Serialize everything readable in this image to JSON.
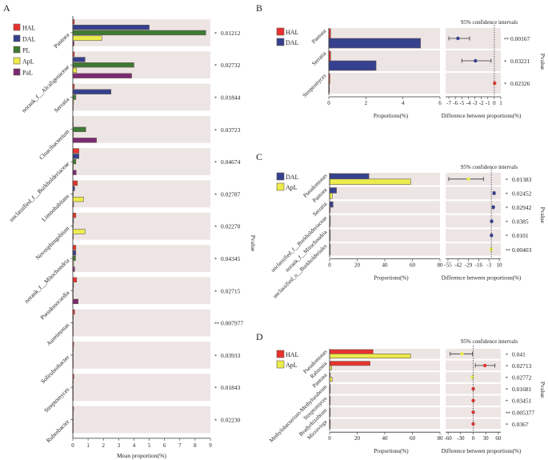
{
  "colors": {
    "HAL": "#e8322e",
    "DAL": "#35418f",
    "PL": "#3d7a34",
    "ApL": "#ecec4c",
    "PaL": "#7b2a73",
    "panel_bg": "#ede5e4",
    "star": "#f07a78",
    "axis": "#333333"
  },
  "chart_data": [
    {
      "panel": "A",
      "type": "bar",
      "orientation": "horizontal",
      "xlabel": "Mean proportion(%)",
      "right_label": "Pvalue",
      "xlim": [
        0,
        9
      ],
      "xticks": [
        "0",
        "1",
        "2",
        "3",
        "4",
        "5",
        "6",
        "7",
        "8",
        "9"
      ],
      "legend": [
        "HAL",
        "DAL",
        "PL",
        "ApL",
        "PaL"
      ],
      "legend_placement": "top-left",
      "categories": [
        "Pantoea",
        "norank_f__Alcaligenaceae",
        "Serratia",
        "Cloacibacterium",
        "unclassified_f__Burkholderiaceae",
        "Limnohabitans",
        "Novosphingobium",
        "norank_f__Mitochondria",
        "Pseudonocardia",
        "Aureimonas",
        "Solirubrobacter",
        "Streptomyces",
        "Rubrobacter"
      ],
      "series": [
        {
          "name": "HAL",
          "values": [
            0.1,
            0.1,
            0.1,
            0.02,
            0.4,
            0.3,
            0.2,
            0.2,
            0.25,
            0.12,
            0.06,
            0.07,
            0.05
          ]
        },
        {
          "name": "DAL",
          "values": [
            5.0,
            0.8,
            2.5,
            0.02,
            0.4,
            0.12,
            0.05,
            0.2,
            0.05,
            0.02,
            0.02,
            0.02,
            0.02
          ]
        },
        {
          "name": "PL",
          "values": [
            8.7,
            4.0,
            0.2,
            0.85,
            0.2,
            0.02,
            0.02,
            0.18,
            0.02,
            0.02,
            0.02,
            0.02,
            0.02
          ]
        },
        {
          "name": "ApL",
          "values": [
            1.9,
            0.25,
            0.05,
            0.02,
            0.02,
            0.7,
            0.8,
            0.05,
            0.02,
            0.02,
            0.02,
            0.02,
            0.02
          ]
        },
        {
          "name": "PaL",
          "values": [
            0.08,
            3.85,
            0.02,
            1.55,
            0.22,
            0.05,
            0.02,
            0.12,
            0.35,
            0.02,
            0.02,
            0.02,
            0.02
          ]
        }
      ],
      "pvalues": [
        "0.01212",
        "0.02732",
        "0.01844",
        "0.03723",
        "0.04674",
        "0.02787",
        "0.02270",
        "0.04345",
        "0.02715",
        "0.007977",
        "0.03933",
        "0.01843",
        "0.02230"
      ],
      "stars": [
        "*",
        "*",
        "*",
        "*",
        "*",
        "*",
        "*",
        "*",
        "*",
        "**",
        "*",
        "*",
        "*"
      ]
    },
    {
      "panel": "B",
      "type": "bar",
      "orientation": "horizontal",
      "xlabel": "Proportions(%)",
      "ci_title": "95% confidence intervals",
      "ci_xlabel": "Difference between proportions(%)",
      "right_label": "Pvalue",
      "xlim": [
        0,
        6
      ],
      "xticks": [
        "0",
        "2",
        "4",
        "6"
      ],
      "ci_xlim": [
        -7.5,
        1
      ],
      "ci_xticks": [
        "-7",
        "-6",
        "-5",
        "-4",
        "-3",
        "-2",
        "-1",
        "0",
        "1"
      ],
      "legend": [
        "HAL",
        "DAL"
      ],
      "categories": [
        "Pantoea",
        "Serratia",
        "Streptomyces"
      ],
      "series": [
        {
          "name": "HAL",
          "values": [
            0.1,
            0.1,
            0.06
          ]
        },
        {
          "name": "DAL",
          "values": [
            4.95,
            2.55,
            0.02
          ]
        }
      ],
      "ci": [
        {
          "estimate": -5.6,
          "low": -7.0,
          "high": -3.8,
          "color_group": "DAL"
        },
        {
          "estimate": -2.9,
          "low": -5.0,
          "high": -0.5,
          "color_group": "DAL"
        },
        {
          "estimate": 0.05,
          "low": 0.05,
          "high": 0.05,
          "color_group": "HAL"
        }
      ],
      "pvalues": [
        "0.00167",
        "0.03221",
        "0.02326"
      ],
      "stars": [
        "**",
        "*",
        "*"
      ]
    },
    {
      "panel": "C",
      "type": "bar",
      "orientation": "horizontal",
      "xlabel": "Proportions(%)",
      "ci_title": "95% confidence intervals",
      "ci_xlabel": "Difference between proportions(%)",
      "right_label": "Pvalue",
      "xlim": [
        0,
        80
      ],
      "xticks": [
        "0",
        "20",
        "40",
        "60",
        "80"
      ],
      "ci_xlim": [
        -58,
        12
      ],
      "ci_xticks": [
        "-55",
        "-42",
        "-29",
        "-16",
        "-3",
        "10"
      ],
      "legend": [
        "DAL",
        "ApL"
      ],
      "categories": [
        "Pseudomonas",
        "Pantoea",
        "Serratia",
        "unclassified_f__Burkholderiaceae",
        "norank_f__Mitochondria",
        "unclassified_o__Burkholderiales"
      ],
      "series": [
        {
          "name": "DAL",
          "values": [
            28.5,
            5.0,
            2.5,
            0.5,
            0.2,
            0.1
          ]
        },
        {
          "name": "ApL",
          "values": [
            58.7,
            1.9,
            0.05,
            0.02,
            0.05,
            0.3
          ]
        }
      ],
      "ci": [
        {
          "estimate": -29,
          "low": -54,
          "high": -10,
          "color_group": "ApL"
        },
        {
          "estimate": 3.5,
          "low": 2.5,
          "high": 4.5,
          "color_group": "DAL"
        },
        {
          "estimate": 2.5,
          "low": 1.5,
          "high": 3.5,
          "color_group": "DAL"
        },
        {
          "estimate": 0.4,
          "low": 0.2,
          "high": 0.6,
          "color_group": "DAL"
        },
        {
          "estimate": 0.2,
          "low": 0.1,
          "high": 0.3,
          "color_group": "DAL"
        },
        {
          "estimate": -0.3,
          "low": -0.4,
          "high": -0.2,
          "color_group": "ApL"
        }
      ],
      "pvalues": [
        "0.01383",
        "0.02452",
        "0.02942",
        "0.0385",
        "0.0101",
        "0.00403"
      ],
      "stars": [
        "*",
        "*",
        "*",
        "*",
        "*",
        "**"
      ]
    },
    {
      "panel": "D",
      "type": "bar",
      "orientation": "horizontal",
      "xlabel": "Proportions(%)",
      "ci_title": "95% confidence intervals",
      "ci_xlabel": "Difference between proportions(%)",
      "right_label": "Pvalue",
      "xlim": [
        0,
        80
      ],
      "xticks": [
        "0",
        "20",
        "40",
        "60",
        "80"
      ],
      "ci_xlim": [
        -66,
        66
      ],
      "ci_xticks": [
        "-60",
        "-30",
        "0",
        "30",
        "60"
      ],
      "legend": [
        "HAL",
        "ApL"
      ],
      "categories": [
        "Pseudomonas",
        "Ralstonia",
        "Pantoea",
        "Methylobacterium-Methylorubrum",
        "Streptomyces",
        "Bradyrhizobium",
        "Microvirga"
      ],
      "series": [
        {
          "name": "HAL",
          "values": [
            31.5,
            29.3,
            0.05,
            0.1,
            0.06,
            0.05,
            0.05
          ]
        },
        {
          "name": "ApL",
          "values": [
            58.7,
            1.5,
            1.9,
            0.02,
            0.02,
            0.02,
            0.02
          ]
        }
      ],
      "ci": [
        {
          "estimate": -27,
          "low": -55,
          "high": -2,
          "color_group": "ApL"
        },
        {
          "estimate": 28,
          "low": 5,
          "high": 52,
          "color_group": "HAL"
        },
        {
          "estimate": -1.9,
          "low": -2.2,
          "high": -1.6,
          "color_group": "ApL"
        },
        {
          "estimate": 0.1,
          "low": 0.05,
          "high": 0.15,
          "color_group": "HAL"
        },
        {
          "estimate": 0.06,
          "low": 0.03,
          "high": 0.1,
          "color_group": "HAL"
        },
        {
          "estimate": 0.05,
          "low": 0.02,
          "high": 0.08,
          "color_group": "HAL"
        },
        {
          "estimate": 0.05,
          "low": 0.02,
          "high": 0.08,
          "color_group": "HAL"
        }
      ],
      "pvalues": [
        "0.041",
        "0.02713",
        "0.02772",
        "0.01681",
        "0.03451",
        "0.005377",
        "0.0367"
      ],
      "stars": [
        "*",
        "*",
        "*",
        "*",
        "*",
        "**",
        "*"
      ]
    }
  ]
}
